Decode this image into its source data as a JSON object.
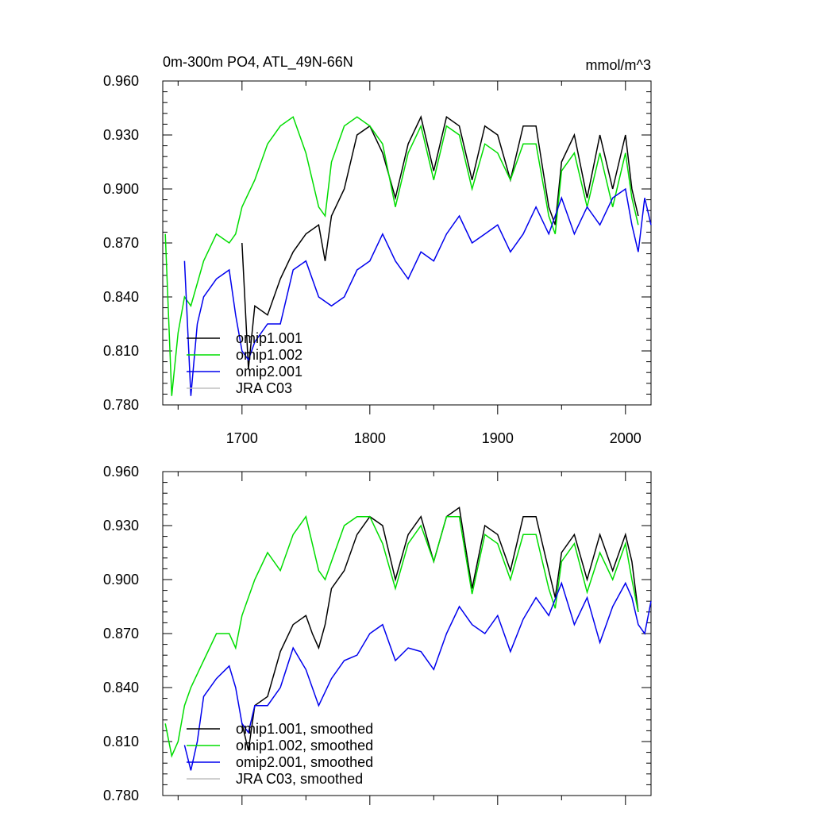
{
  "figure": {
    "title": "0m-300m PO4, ATL_49N-66N",
    "units": "mmol/m^3"
  },
  "colors": {
    "omip1_001": "#000000",
    "omip1_002": "#00dd00",
    "omip2_001": "#0000ee",
    "jra_c03": "#c0c0c0"
  },
  "chart_data": [
    {
      "type": "line",
      "panel": "top",
      "xlim": [
        1638,
        2020
      ],
      "ylim": [
        0.78,
        0.96
      ],
      "x_ticks": [
        1700,
        1800,
        1900,
        2000
      ],
      "x_tick_labels": [
        "1700",
        "1800",
        "1900",
        "2000"
      ],
      "y_ticks": [
        0.78,
        0.81,
        0.84,
        0.87,
        0.9,
        0.93,
        0.96
      ],
      "y_tick_labels": [
        "0.780",
        "0.810",
        "0.840",
        "0.870",
        "0.900",
        "0.930",
        "0.960"
      ],
      "legend_position": "bottom-left",
      "series": [
        {
          "name": "omip1.001",
          "color": "#000000",
          "x": [
            1700,
            1705,
            1710,
            1720,
            1730,
            1740,
            1750,
            1760,
            1765,
            1770,
            1780,
            1790,
            1800,
            1810,
            1820,
            1830,
            1840,
            1850,
            1860,
            1870,
            1880,
            1890,
            1900,
            1910,
            1920,
            1930,
            1940,
            1945,
            1950,
            1960,
            1970,
            1980,
            1990,
            2000,
            2005,
            2010
          ],
          "y": [
            0.87,
            0.8,
            0.835,
            0.83,
            0.85,
            0.865,
            0.875,
            0.88,
            0.86,
            0.885,
            0.9,
            0.93,
            0.935,
            0.92,
            0.895,
            0.925,
            0.94,
            0.91,
            0.94,
            0.935,
            0.905,
            0.935,
            0.93,
            0.905,
            0.935,
            0.935,
            0.89,
            0.88,
            0.915,
            0.93,
            0.895,
            0.93,
            0.9,
            0.93,
            0.9,
            0.885
          ]
        },
        {
          "name": "omip1.002",
          "color": "#00dd00",
          "x": [
            1640,
            1645,
            1650,
            1655,
            1660,
            1670,
            1680,
            1690,
            1695,
            1700,
            1710,
            1720,
            1730,
            1740,
            1750,
            1760,
            1765,
            1770,
            1780,
            1790,
            1800,
            1810,
            1820,
            1830,
            1840,
            1850,
            1860,
            1870,
            1880,
            1890,
            1900,
            1910,
            1920,
            1930,
            1940,
            1945,
            1950,
            1960,
            1970,
            1980,
            1990,
            2000,
            2005,
            2010
          ],
          "y": [
            0.875,
            0.785,
            0.82,
            0.84,
            0.835,
            0.86,
            0.875,
            0.87,
            0.875,
            0.89,
            0.905,
            0.925,
            0.935,
            0.94,
            0.92,
            0.89,
            0.885,
            0.915,
            0.935,
            0.94,
            0.935,
            0.925,
            0.89,
            0.92,
            0.935,
            0.905,
            0.935,
            0.93,
            0.9,
            0.925,
            0.92,
            0.905,
            0.925,
            0.925,
            0.885,
            0.875,
            0.91,
            0.92,
            0.89,
            0.92,
            0.89,
            0.92,
            0.895,
            0.88
          ]
        },
        {
          "name": "omip2.001",
          "color": "#0000ee",
          "x": [
            1655,
            1660,
            1665,
            1670,
            1680,
            1690,
            1695,
            1700,
            1705,
            1710,
            1720,
            1730,
            1740,
            1750,
            1760,
            1770,
            1780,
            1790,
            1800,
            1810,
            1820,
            1830,
            1840,
            1850,
            1860,
            1870,
            1880,
            1890,
            1900,
            1910,
            1920,
            1930,
            1940,
            1950,
            1960,
            1970,
            1980,
            1990,
            2000,
            2005,
            2010,
            2015,
            2020
          ],
          "y": [
            0.86,
            0.785,
            0.825,
            0.84,
            0.85,
            0.855,
            0.83,
            0.81,
            0.805,
            0.815,
            0.825,
            0.825,
            0.855,
            0.86,
            0.84,
            0.835,
            0.84,
            0.855,
            0.86,
            0.875,
            0.86,
            0.85,
            0.865,
            0.86,
            0.875,
            0.885,
            0.87,
            0.875,
            0.88,
            0.865,
            0.875,
            0.89,
            0.875,
            0.895,
            0.875,
            0.89,
            0.88,
            0.895,
            0.9,
            0.88,
            0.865,
            0.895,
            0.88
          ]
        },
        {
          "name": "JRA C03",
          "color": "#c0c0c0",
          "x": [],
          "y": []
        }
      ]
    },
    {
      "type": "line",
      "panel": "bottom",
      "xlim": [
        1638,
        2020
      ],
      "ylim": [
        0.78,
        0.96
      ],
      "x_ticks": [
        1700,
        1800,
        1900,
        2000
      ],
      "y_ticks": [
        0.78,
        0.81,
        0.84,
        0.87,
        0.9,
        0.93,
        0.96
      ],
      "y_tick_labels": [
        "0.780",
        "0.810",
        "0.840",
        "0.870",
        "0.900",
        "0.930",
        "0.960"
      ],
      "legend_position": "bottom-left",
      "series": [
        {
          "name": "omip1.001, smoothed",
          "color": "#000000",
          "x": [
            1700,
            1705,
            1710,
            1720,
            1730,
            1740,
            1750,
            1755,
            1760,
            1765,
            1770,
            1780,
            1790,
            1800,
            1810,
            1820,
            1830,
            1840,
            1850,
            1860,
            1870,
            1880,
            1890,
            1900,
            1910,
            1920,
            1930,
            1940,
            1945,
            1950,
            1960,
            1970,
            1980,
            1990,
            2000,
            2005,
            2010
          ],
          "y": [
            0.82,
            0.805,
            0.83,
            0.835,
            0.86,
            0.875,
            0.88,
            0.87,
            0.862,
            0.875,
            0.895,
            0.905,
            0.925,
            0.935,
            0.93,
            0.9,
            0.925,
            0.935,
            0.91,
            0.935,
            0.94,
            0.895,
            0.93,
            0.925,
            0.905,
            0.935,
            0.935,
            0.905,
            0.89,
            0.915,
            0.925,
            0.9,
            0.925,
            0.905,
            0.925,
            0.91,
            0.882
          ]
        },
        {
          "name": "omip1.002, smoothed",
          "color": "#00dd00",
          "x": [
            1640,
            1645,
            1650,
            1655,
            1660,
            1670,
            1680,
            1690,
            1695,
            1700,
            1710,
            1720,
            1730,
            1740,
            1750,
            1760,
            1765,
            1770,
            1780,
            1790,
            1800,
            1810,
            1820,
            1830,
            1840,
            1850,
            1860,
            1870,
            1880,
            1890,
            1900,
            1910,
            1920,
            1930,
            1940,
            1945,
            1950,
            1960,
            1970,
            1980,
            1990,
            2000,
            2005,
            2010
          ],
          "y": [
            0.82,
            0.802,
            0.81,
            0.83,
            0.84,
            0.855,
            0.87,
            0.87,
            0.862,
            0.88,
            0.9,
            0.915,
            0.905,
            0.925,
            0.935,
            0.905,
            0.9,
            0.91,
            0.93,
            0.935,
            0.935,
            0.92,
            0.895,
            0.92,
            0.93,
            0.91,
            0.935,
            0.935,
            0.892,
            0.925,
            0.92,
            0.9,
            0.925,
            0.925,
            0.895,
            0.884,
            0.91,
            0.92,
            0.893,
            0.915,
            0.9,
            0.92,
            0.9,
            0.882
          ]
        },
        {
          "name": "omip2.001, smoothed",
          "color": "#0000ee",
          "x": [
            1655,
            1660,
            1665,
            1670,
            1680,
            1690,
            1695,
            1700,
            1705,
            1710,
            1720,
            1730,
            1740,
            1750,
            1760,
            1770,
            1780,
            1790,
            1800,
            1810,
            1820,
            1830,
            1840,
            1850,
            1860,
            1870,
            1880,
            1890,
            1900,
            1910,
            1920,
            1930,
            1940,
            1950,
            1960,
            1970,
            1980,
            1990,
            2000,
            2005,
            2010,
            2015,
            2020
          ],
          "y": [
            0.808,
            0.794,
            0.81,
            0.835,
            0.845,
            0.852,
            0.84,
            0.82,
            0.815,
            0.83,
            0.83,
            0.84,
            0.862,
            0.85,
            0.83,
            0.845,
            0.855,
            0.858,
            0.87,
            0.875,
            0.855,
            0.862,
            0.86,
            0.85,
            0.87,
            0.885,
            0.875,
            0.87,
            0.88,
            0.86,
            0.878,
            0.89,
            0.88,
            0.898,
            0.875,
            0.89,
            0.865,
            0.885,
            0.898,
            0.89,
            0.875,
            0.87,
            0.888
          ]
        },
        {
          "name": "JRA C03, smoothed",
          "color": "#c0c0c0",
          "x": [],
          "y": []
        }
      ]
    }
  ]
}
